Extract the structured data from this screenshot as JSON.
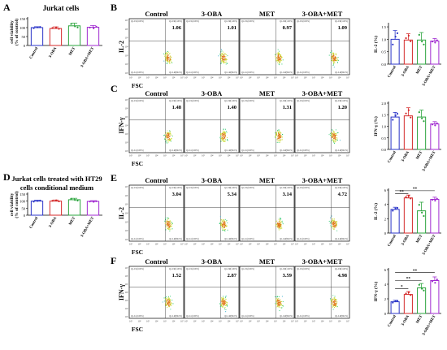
{
  "colors": {
    "control": "#2b35c8",
    "oba": "#d42a2a",
    "met": "#2aa43c",
    "combo": "#a02ad0"
  },
  "groups": [
    "Control",
    "3-OBA",
    "MET",
    "3-OBA+MET"
  ],
  "panels": {
    "A": {
      "letter": "A",
      "title": "Jurkat cells",
      "ylabel_top": "cell viability",
      "ylabel_bottom": "(% of control)",
      "yticks": [
        "0",
        "50",
        "100",
        "150"
      ]
    },
    "D": {
      "letter": "D",
      "title_line1": "Jurkat cells treated with HT29",
      "title_line2": "cells conditional medium",
      "ylabel_top": "cell viability",
      "ylabel_bottom": "(% of control)",
      "yticks": [
        "0",
        "50",
        "100",
        "150"
      ]
    },
    "B": {
      "letter": "B",
      "ylabel": "IL-2",
      "xlabel": "FSC",
      "values": [
        "1.06",
        "1.01",
        "0.97",
        "1.09"
      ],
      "bar_ylabel": "IL-2 (%)",
      "yticks": [
        "0.0",
        "0.5",
        "1.0",
        "1.5"
      ]
    },
    "C": {
      "letter": "C",
      "ylabel": "IFN-γ",
      "xlabel": "FSC",
      "values": [
        "1.48",
        "1.40",
        "1.31",
        "1.20"
      ],
      "bar_ylabel": "IFN-γ (%)",
      "yticks": [
        "0.0",
        "0.5",
        "1.0",
        "1.5",
        "2.0"
      ]
    },
    "E": {
      "letter": "E",
      "ylabel": "IL-2",
      "xlabel": "FSC",
      "values": [
        "3.04",
        "5.34",
        "3.14",
        "4.72"
      ],
      "bar_ylabel": "IL-2 (%)",
      "yticks": [
        "0",
        "2",
        "4",
        "6"
      ]
    },
    "F": {
      "letter": "F",
      "ylabel": "IFN-γ",
      "xlabel": "FSC",
      "values": [
        "1.52",
        "2.87",
        "3.59",
        "4.98"
      ],
      "bar_ylabel": "IFN-γ (%)",
      "yticks": [
        "0",
        "2",
        "4",
        "6"
      ]
    }
  },
  "significance": "**",
  "significance_single": "*",
  "quadrant_labels": {
    "ul": "Q1-UL(0.00%)",
    "ur": "Q1-UR(1.00%)",
    "ll": "Q1-LL(0.00%)",
    "lr": "Q1-LR(99.0%)"
  },
  "flow_xticks": [
    "10¹",
    "10²",
    "10³",
    "10⁴",
    "10⁵",
    "10⁶",
    "10⁷"
  ],
  "flow_yticks": [
    "10⁷",
    "10⁶",
    "10⁵",
    "10⁴",
    "10³",
    "10²",
    "10¹"
  ],
  "chart_data": [
    {
      "type": "bar",
      "panel": "A",
      "title": "Jurkat cells",
      "categories": [
        "Control",
        "3-OBA",
        "MET",
        "3-OBA+MET"
      ],
      "values": [
        100,
        95,
        110,
        102
      ],
      "ylabel": "cell viability (% of control)",
      "ylim": [
        0,
        150
      ]
    },
    {
      "type": "bar",
      "panel": "B",
      "categories": [
        "Control",
        "3-OBA",
        "MET",
        "3-OBA+MET"
      ],
      "values": [
        1.0,
        0.97,
        0.97,
        0.93
      ],
      "ylabel": "IL-2 (%)",
      "ylim": [
        0,
        1.6
      ]
    },
    {
      "type": "bar",
      "panel": "C",
      "categories": [
        "Control",
        "3-OBA",
        "MET",
        "3-OBA+MET"
      ],
      "values": [
        1.4,
        1.45,
        1.4,
        1.1
      ],
      "ylabel": "IFN-γ (%)",
      "ylim": [
        0,
        2.0
      ]
    },
    {
      "type": "bar",
      "panel": "D",
      "title": "Jurkat cells treated with HT29 cells conditional medium",
      "categories": [
        "Control",
        "3-OBA",
        "MET",
        "3-OBA+MET"
      ],
      "values": [
        100,
        100,
        110,
        98
      ],
      "ylabel": "cell viability (% of control)",
      "ylim": [
        0,
        150
      ]
    },
    {
      "type": "bar",
      "panel": "E",
      "categories": [
        "Control",
        "3-OBA",
        "MET",
        "3-OBA+MET"
      ],
      "values": [
        3.3,
        4.9,
        3.1,
        4.7
      ],
      "ylabel": "IL-2 (%)",
      "ylim": [
        0,
        6
      ]
    },
    {
      "type": "bar",
      "panel": "F",
      "categories": [
        "Control",
        "3-OBA",
        "MET",
        "3-OBA+MET"
      ],
      "values": [
        1.6,
        2.6,
        3.5,
        4.5
      ],
      "ylabel": "IFN-γ (%)",
      "ylim": [
        0,
        6
      ]
    }
  ]
}
